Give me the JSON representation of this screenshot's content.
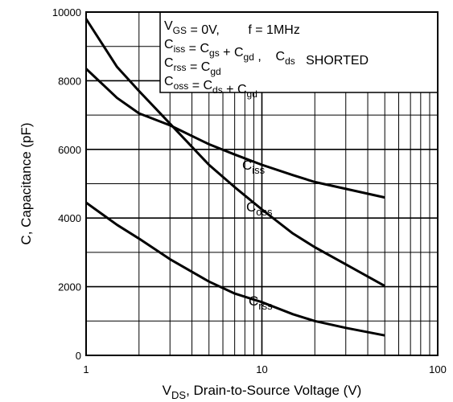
{
  "chart_data": {
    "type": "line",
    "xlabel": {
      "main": "V",
      "sub": "DS",
      "rest": ", Drain-to-Source Voltage (V)"
    },
    "ylabel": "C, Capacitance (pF)",
    "xscale": "log",
    "xlim": [
      1,
      100
    ],
    "ylim": [
      0,
      10000
    ],
    "xticks": [
      1,
      10,
      100
    ],
    "xtick_labels": [
      "1",
      "10",
      "100"
    ],
    "yticks": [
      0,
      2000,
      4000,
      6000,
      8000,
      10000
    ],
    "ytick_labels": [
      "0",
      "2000",
      "4000",
      "6000",
      "8000",
      "10000"
    ],
    "grid": true,
    "series": [
      {
        "name": "Ciss",
        "label": {
          "main": "C",
          "sub": "iss"
        },
        "x": [
          1,
          1.5,
          2,
          3,
          5,
          7,
          10,
          15,
          20,
          30,
          50
        ],
        "y": [
          8350,
          7500,
          7050,
          6700,
          6150,
          5850,
          5550,
          5250,
          5050,
          4850,
          4600
        ]
      },
      {
        "name": "Coss",
        "label": {
          "main": "C",
          "sub": "oss"
        },
        "x": [
          1,
          1.5,
          2,
          3,
          5,
          7,
          10,
          15,
          20,
          30,
          50
        ],
        "y": [
          9800,
          8400,
          7700,
          6750,
          5550,
          4900,
          4250,
          3550,
          3150,
          2650,
          2020
        ]
      },
      {
        "name": "Crss",
        "label": {
          "main": "C",
          "sub": "rss"
        },
        "x": [
          1,
          1.5,
          2,
          3,
          5,
          7,
          10,
          15,
          20,
          30,
          50
        ],
        "y": [
          4450,
          3800,
          3400,
          2800,
          2150,
          1800,
          1550,
          1200,
          1000,
          800,
          580
        ]
      }
    ],
    "annotation": {
      "lines": [
        [
          {
            "t": "V"
          },
          {
            "t": "GS",
            "sub": true
          },
          {
            "t": " = 0V,        f = 1MHz"
          }
        ],
        [
          {
            "t": "C"
          },
          {
            "t": "iss",
            "sub": true
          },
          {
            "t": " = C"
          },
          {
            "t": "gs",
            "sub": true
          },
          {
            "t": " + C"
          },
          {
            "t": "gd",
            "sub": true
          },
          {
            "t": " ,    C"
          },
          {
            "t": "ds",
            "sub": true
          },
          {
            "t": "   SHORTED"
          }
        ],
        [
          {
            "t": "C"
          },
          {
            "t": "rss",
            "sub": true
          },
          {
            "t": " = C"
          },
          {
            "t": "gd",
            "sub": true
          }
        ],
        [
          {
            "t": "C"
          },
          {
            "t": "oss",
            "sub": true
          },
          {
            "t": " = C"
          },
          {
            "t": "ds",
            "sub": true
          },
          {
            "t": " + C"
          },
          {
            "t": "gd",
            "sub": true
          }
        ]
      ]
    }
  }
}
